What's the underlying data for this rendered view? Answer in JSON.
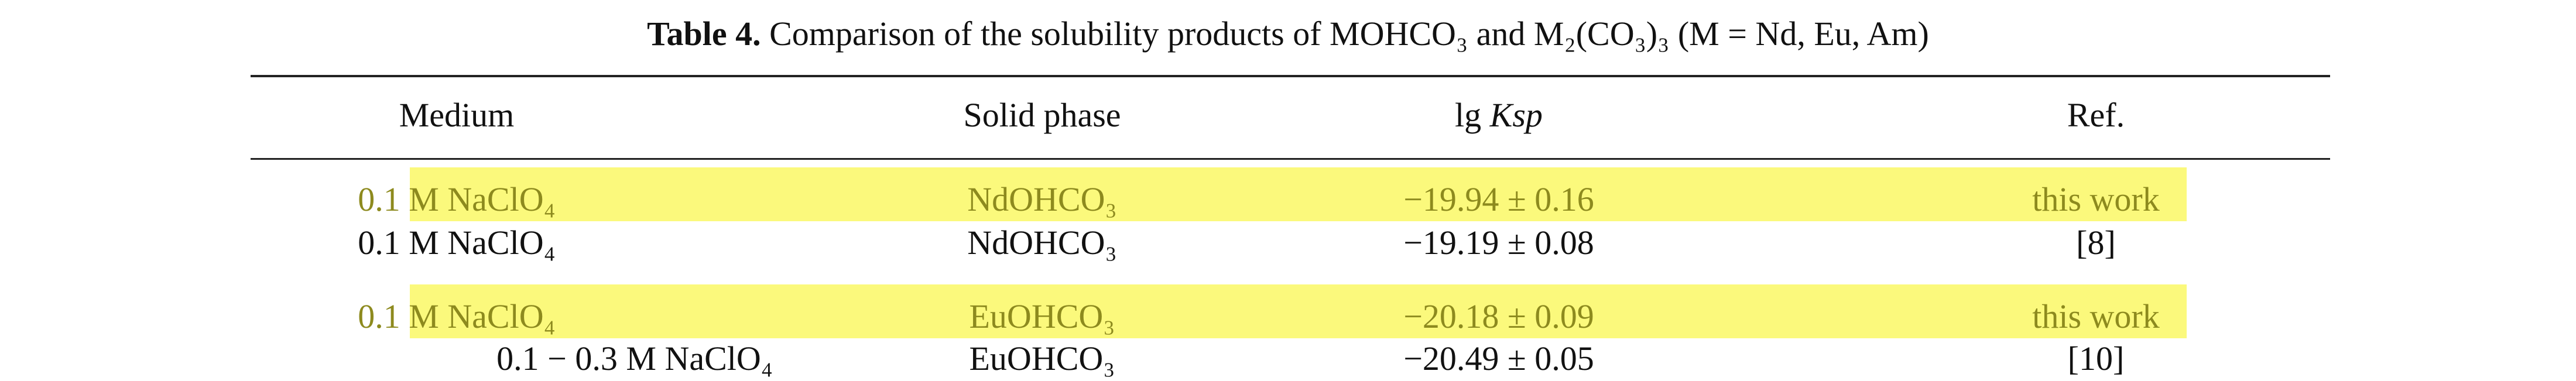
{
  "caption": {
    "label": "Table 4.",
    "text": "Comparison of the solubility products of MOHCO₃ and M₂(CO₃)₃ (M = Nd, Eu, Am)"
  },
  "columns": {
    "medium": "Medium",
    "solid_phase": "Solid phase",
    "lgksp_prefix": "lg",
    "lgksp_symbol": "Ksp",
    "ref": "Ref."
  },
  "rows": [
    {
      "medium": "0.1 M  NaClO₄",
      "solid_phase": "NdOHCO₃",
      "lgksp": "−19.94 ± 0.16",
      "ref": "this work",
      "highlighted": true
    },
    {
      "medium": "0.1 M  NaClO₄",
      "solid_phase": "NdOHCO₃",
      "lgksp": "−19.19 ± 0.08",
      "ref": "[8]",
      "highlighted": false
    },
    {
      "medium": "0.1 M  NaClO₄",
      "solid_phase": "EuOHCO₃",
      "lgksp": "−20.18 ± 0.09",
      "ref": "this work",
      "highlighted": true
    },
    {
      "medium": "0.1 − 0.3 M  NaClO₄",
      "solid_phase": "EuOHCO₃",
      "lgksp": "−20.49 ± 0.05",
      "ref": "[10]",
      "highlighted": false
    }
  ],
  "colors": {
    "highlight": "#fbf97c",
    "highlight_text": "#8d8a1e",
    "text": "#111111"
  }
}
